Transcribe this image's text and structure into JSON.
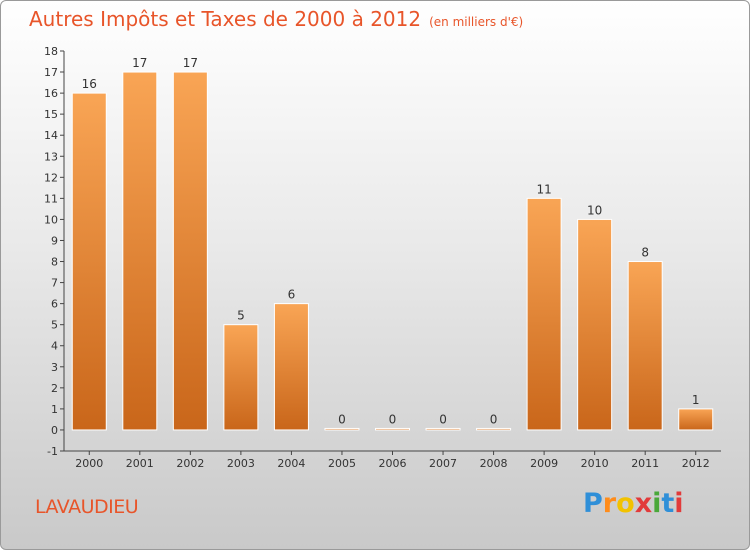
{
  "chart_data": {
    "type": "bar",
    "title": "Autres Impôts et Taxes de 2000 à 2012",
    "subtitle": "(en milliers d'€)",
    "categories": [
      "2000",
      "2001",
      "2002",
      "2003",
      "2004",
      "2005",
      "2006",
      "2007",
      "2008",
      "2009",
      "2010",
      "2011",
      "2012"
    ],
    "values": [
      16,
      17,
      17,
      5,
      6,
      0,
      0,
      0,
      0,
      11,
      10,
      8,
      1
    ],
    "ylim": [
      -1,
      18
    ],
    "yticks": [
      "-1",
      "0",
      "1",
      "2",
      "3",
      "4",
      "5",
      "6",
      "7",
      "8",
      "9",
      "10",
      "11",
      "12",
      "13",
      "14",
      "15",
      "16",
      "17",
      "18"
    ],
    "grid": false,
    "bar_color": "#f28c28"
  },
  "commune": "LAVAUDIEU",
  "logo": {
    "letters": [
      "P",
      "r",
      "o",
      "x",
      "i",
      "t",
      "i"
    ],
    "colors": [
      "#2f8fd8",
      "#ff8c1a",
      "#f2c200",
      "#e23a3a",
      "#4aa83a",
      "#2f8fd8",
      "#e23a3a"
    ]
  }
}
